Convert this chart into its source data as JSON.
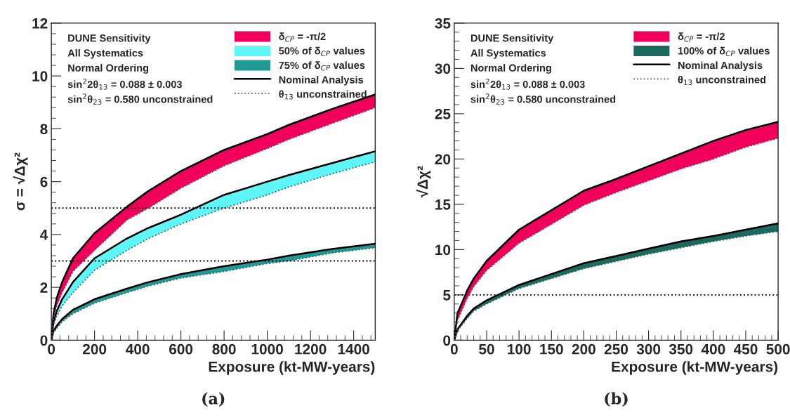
{
  "chart_data": [
    {
      "type": "area",
      "title": "(a)",
      "xlabel": "Exposure (kt-MW-years)",
      "ylabel": "σ = √Δχ²",
      "x": [
        0,
        10,
        25,
        50,
        100,
        200,
        350,
        450,
        600,
        800,
        1000,
        1100,
        1300,
        1500
      ],
      "xlim": [
        0,
        1500
      ],
      "xticks": [
        0,
        200,
        400,
        600,
        800,
        1000,
        1200,
        1400
      ],
      "ylim": [
        0,
        12
      ],
      "yticks": [
        0,
        2,
        4,
        6,
        8,
        10,
        12
      ],
      "series": [
        {
          "name": "δ$_{CP}$ = -π/2",
          "type": "area",
          "color": "#f0005a",
          "values": [
            0,
            1.0,
            1.6,
            2.2,
            3.1,
            4.05,
            5.05,
            5.65,
            6.4,
            7.2,
            7.8,
            8.15,
            8.75,
            9.3
          ]
        },
        {
          "name": "50% of δ$_{CP}$ values",
          "type": "area",
          "color": "#5ff6f7",
          "values": [
            0,
            0.7,
            1.1,
            1.55,
            2.2,
            3.1,
            3.85,
            4.25,
            4.75,
            5.5,
            6.0,
            6.25,
            6.7,
            7.15
          ]
        },
        {
          "name": "75% of δ$_{CP}$ values",
          "type": "area",
          "color": "#1f9a96",
          "values": [
            0,
            0.35,
            0.55,
            0.8,
            1.15,
            1.55,
            1.95,
            2.2,
            2.5,
            2.8,
            3.05,
            3.2,
            3.45,
            3.65
          ]
        },
        {
          "name": "Nominal Analysis",
          "type": "line",
          "color": "#000000",
          "line_style": "solid",
          "values": [
            null,
            null,
            null,
            null,
            null,
            null,
            null,
            null,
            null,
            null,
            null,
            null,
            null,
            null
          ]
        },
        {
          "name": "θ$_{13}$ unconstrained",
          "type": "line",
          "color": "#555555",
          "line_style": "dotted",
          "values": [
            0,
            0.8,
            1.3,
            1.8,
            2.6,
            3.4,
            4.55,
            5.0,
            5.75,
            6.6,
            7.25,
            7.6,
            8.2,
            8.8
          ]
        },
        {
          "type": "line",
          "color": "#555555",
          "line_style": "dotted",
          "values": [
            0,
            0.55,
            0.9,
            1.3,
            1.8,
            2.65,
            3.4,
            3.85,
            4.4,
            5.0,
            5.5,
            5.8,
            6.3,
            6.75
          ]
        },
        {
          "type": "line",
          "color": "#555555",
          "line_style": "dotted",
          "values": [
            0,
            0.3,
            0.45,
            0.7,
            1.0,
            1.4,
            1.8,
            2.05,
            2.35,
            2.6,
            2.9,
            3.0,
            3.3,
            3.5
          ]
        }
      ],
      "ref_lines": [
        {
          "axis": "y",
          "value": 5,
          "line_style": "dotted",
          "color": "#000000"
        },
        {
          "axis": "y",
          "value": 3,
          "line_style": "dotted",
          "color": "#000000"
        }
      ],
      "annotations": [
        "DUNE Sensitivity",
        "All Systematics",
        "Normal Ordering",
        "sin$^{2}$2θ$_{13}$ = 0.088 ± 0.003",
        "sin$^{2}$θ$_{23}$ = 0.580 unconstrained"
      ],
      "legend": "top right",
      "grid": false
    },
    {
      "type": "area",
      "title": "(b)",
      "xlabel": "Exposure (kt-MW-years)",
      "ylabel": "√Δχ²",
      "x": [
        0,
        5,
        10,
        20,
        30,
        50,
        100,
        200,
        250,
        300,
        350,
        400,
        450,
        500
      ],
      "xlim": [
        0,
        500
      ],
      "xticks": [
        0,
        50,
        100,
        150,
        200,
        250,
        300,
        350,
        400,
        450,
        500
      ],
      "ylim": [
        0,
        35
      ],
      "yticks": [
        0,
        5,
        10,
        15,
        20,
        25,
        30,
        35
      ],
      "series": [
        {
          "name": "δ$_{CP}$ = -π/2",
          "type": "area",
          "color": "#f0005a",
          "values": [
            0,
            3.0,
            3.8,
            5.5,
            6.8,
            8.75,
            12.2,
            16.5,
            17.8,
            19.2,
            20.6,
            22.0,
            23.2,
            24.1
          ]
        },
        {
          "name": "100% of δ$_{CP}$ values",
          "type": "area",
          "color": "#1a6a60",
          "values": [
            0,
            1.2,
            1.7,
            2.7,
            3.5,
            4.4,
            6.1,
            8.5,
            9.3,
            10.1,
            10.9,
            11.5,
            12.2,
            12.9
          ]
        },
        {
          "name": "Nominal Analysis",
          "type": "line",
          "color": "#000000",
          "line_style": "solid",
          "values": [
            null,
            null,
            null,
            null,
            null,
            null,
            null,
            null,
            null,
            null,
            null,
            null,
            null,
            null
          ]
        },
        {
          "name": "θ$_{13}$ unconstrained",
          "type": "line",
          "color": "#555555",
          "line_style": "dotted",
          "values": [
            0,
            2.2,
            3.0,
            4.6,
            5.9,
            7.7,
            10.7,
            14.9,
            16.3,
            17.6,
            18.9,
            20.0,
            21.3,
            22.3
          ]
        },
        {
          "type": "line",
          "color": "#555555",
          "line_style": "dotted",
          "values": [
            0,
            1.0,
            1.5,
            2.4,
            3.2,
            4.0,
            5.7,
            7.9,
            8.7,
            9.5,
            10.2,
            10.9,
            11.5,
            12.0
          ]
        }
      ],
      "ref_lines": [
        {
          "axis": "y",
          "value": 5,
          "line_style": "dotted",
          "color": "#000000"
        }
      ],
      "annotations": [
        "DUNE Sensitivity",
        "All Systematics",
        "Normal Ordering",
        "sin$^{2}$2θ$_{13}$ = 0.088 ± 0.003",
        "sin$^{2}$θ$_{23}$ = 0.580 unconstrained"
      ],
      "legend": "top right",
      "grid": false
    }
  ]
}
